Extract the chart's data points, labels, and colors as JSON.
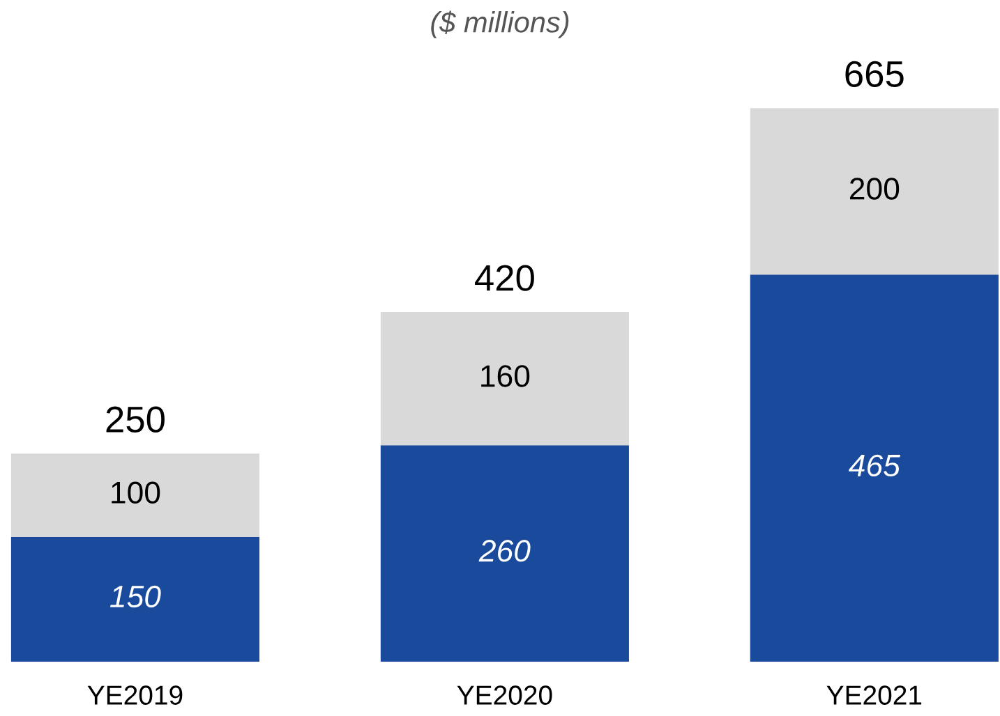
{
  "chart_data": {
    "type": "bar",
    "subtitle": "($ millions)",
    "categories": [
      "YE2019",
      "YE2020",
      "YE2021"
    ],
    "stacked": true,
    "series": [
      {
        "color": "#1a4a9c",
        "values": [
          150,
          260,
          465
        ]
      },
      {
        "color": "#d9d9d9",
        "values": [
          100,
          160,
          200
        ]
      }
    ],
    "data_labels": true,
    "totals": [
      "250",
      "420",
      "665"
    ],
    "grid": false,
    "legend": false
  }
}
